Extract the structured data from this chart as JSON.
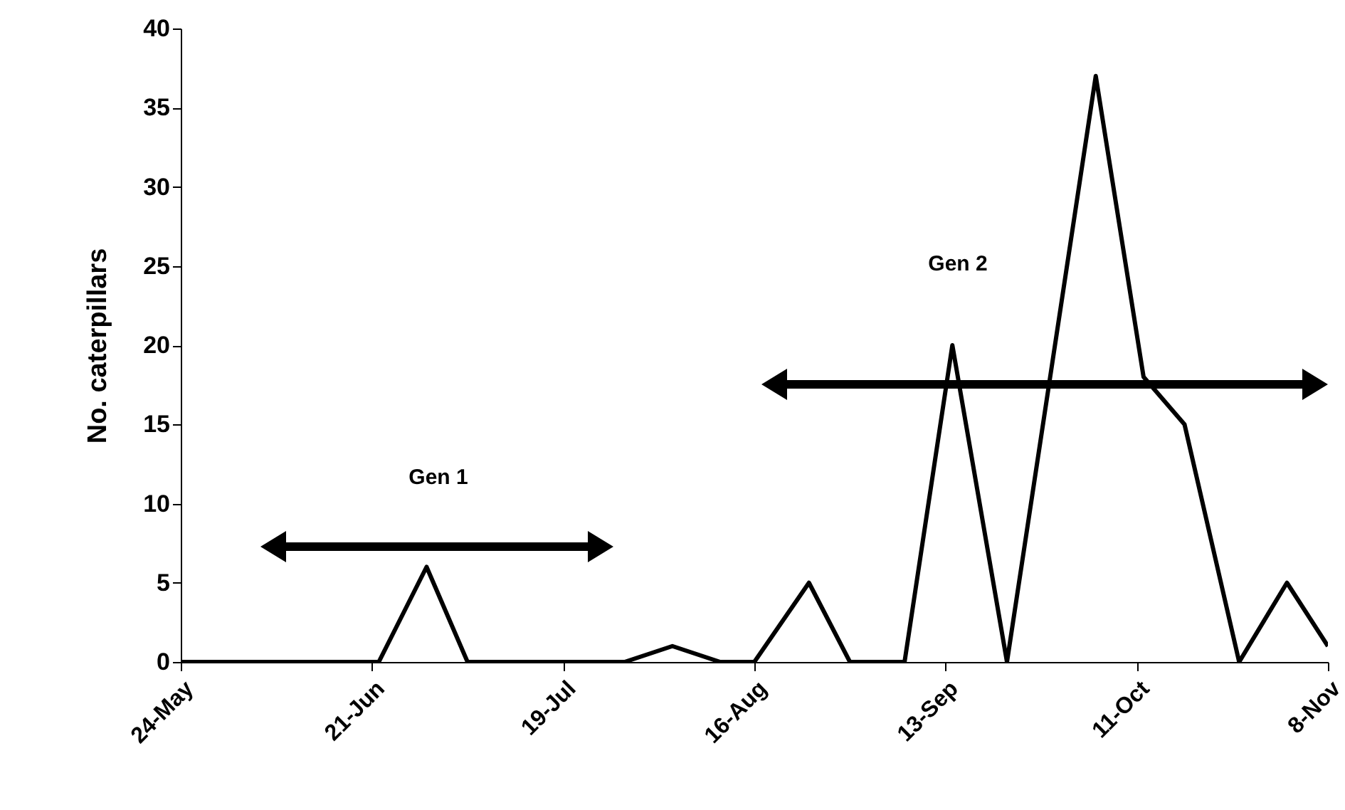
{
  "chart_data": {
    "type": "line",
    "ylabel": "No. caterpillars",
    "x": [
      "--05-24",
      "--06-22",
      "--06-29",
      "--07-05",
      "--07-28",
      "--08-04",
      "--08-11",
      "--08-16",
      "--08-24",
      "--08-30",
      "--09-07",
      "--09-14",
      "--09-22",
      "--10-05",
      "--10-12",
      "--10-18",
      "--10-26",
      "--11-02",
      "--11-08"
    ],
    "series": [
      {
        "color": "#000000",
        "values": [
          0,
          0,
          6,
          0,
          0,
          1,
          0,
          0,
          5,
          0,
          0,
          20,
          0,
          37,
          18,
          15,
          0,
          5,
          1
        ]
      }
    ],
    "xlim": [
      "--05-24",
      "--11-08"
    ],
    "xticks": [
      {
        "value": "--05-24",
        "label": "24-May"
      },
      {
        "value": "--06-21",
        "label": "21-Jun"
      },
      {
        "value": "--07-19",
        "label": "19-Jul"
      },
      {
        "value": "--08-16",
        "label": "16-Aug"
      },
      {
        "value": "--09-13",
        "label": "13-Sep"
      },
      {
        "value": "--10-11",
        "label": "11-Oct"
      },
      {
        "value": "--11-08",
        "label": "8-Nov"
      }
    ],
    "ylim": [
      0,
      40
    ],
    "yticks": [
      0,
      5,
      10,
      15,
      20,
      25,
      30,
      35,
      40
    ],
    "annotations": [
      "Gen 1",
      "Gen 2"
    ],
    "grid": false,
    "marker": "none",
    "line_style": "solid"
  }
}
